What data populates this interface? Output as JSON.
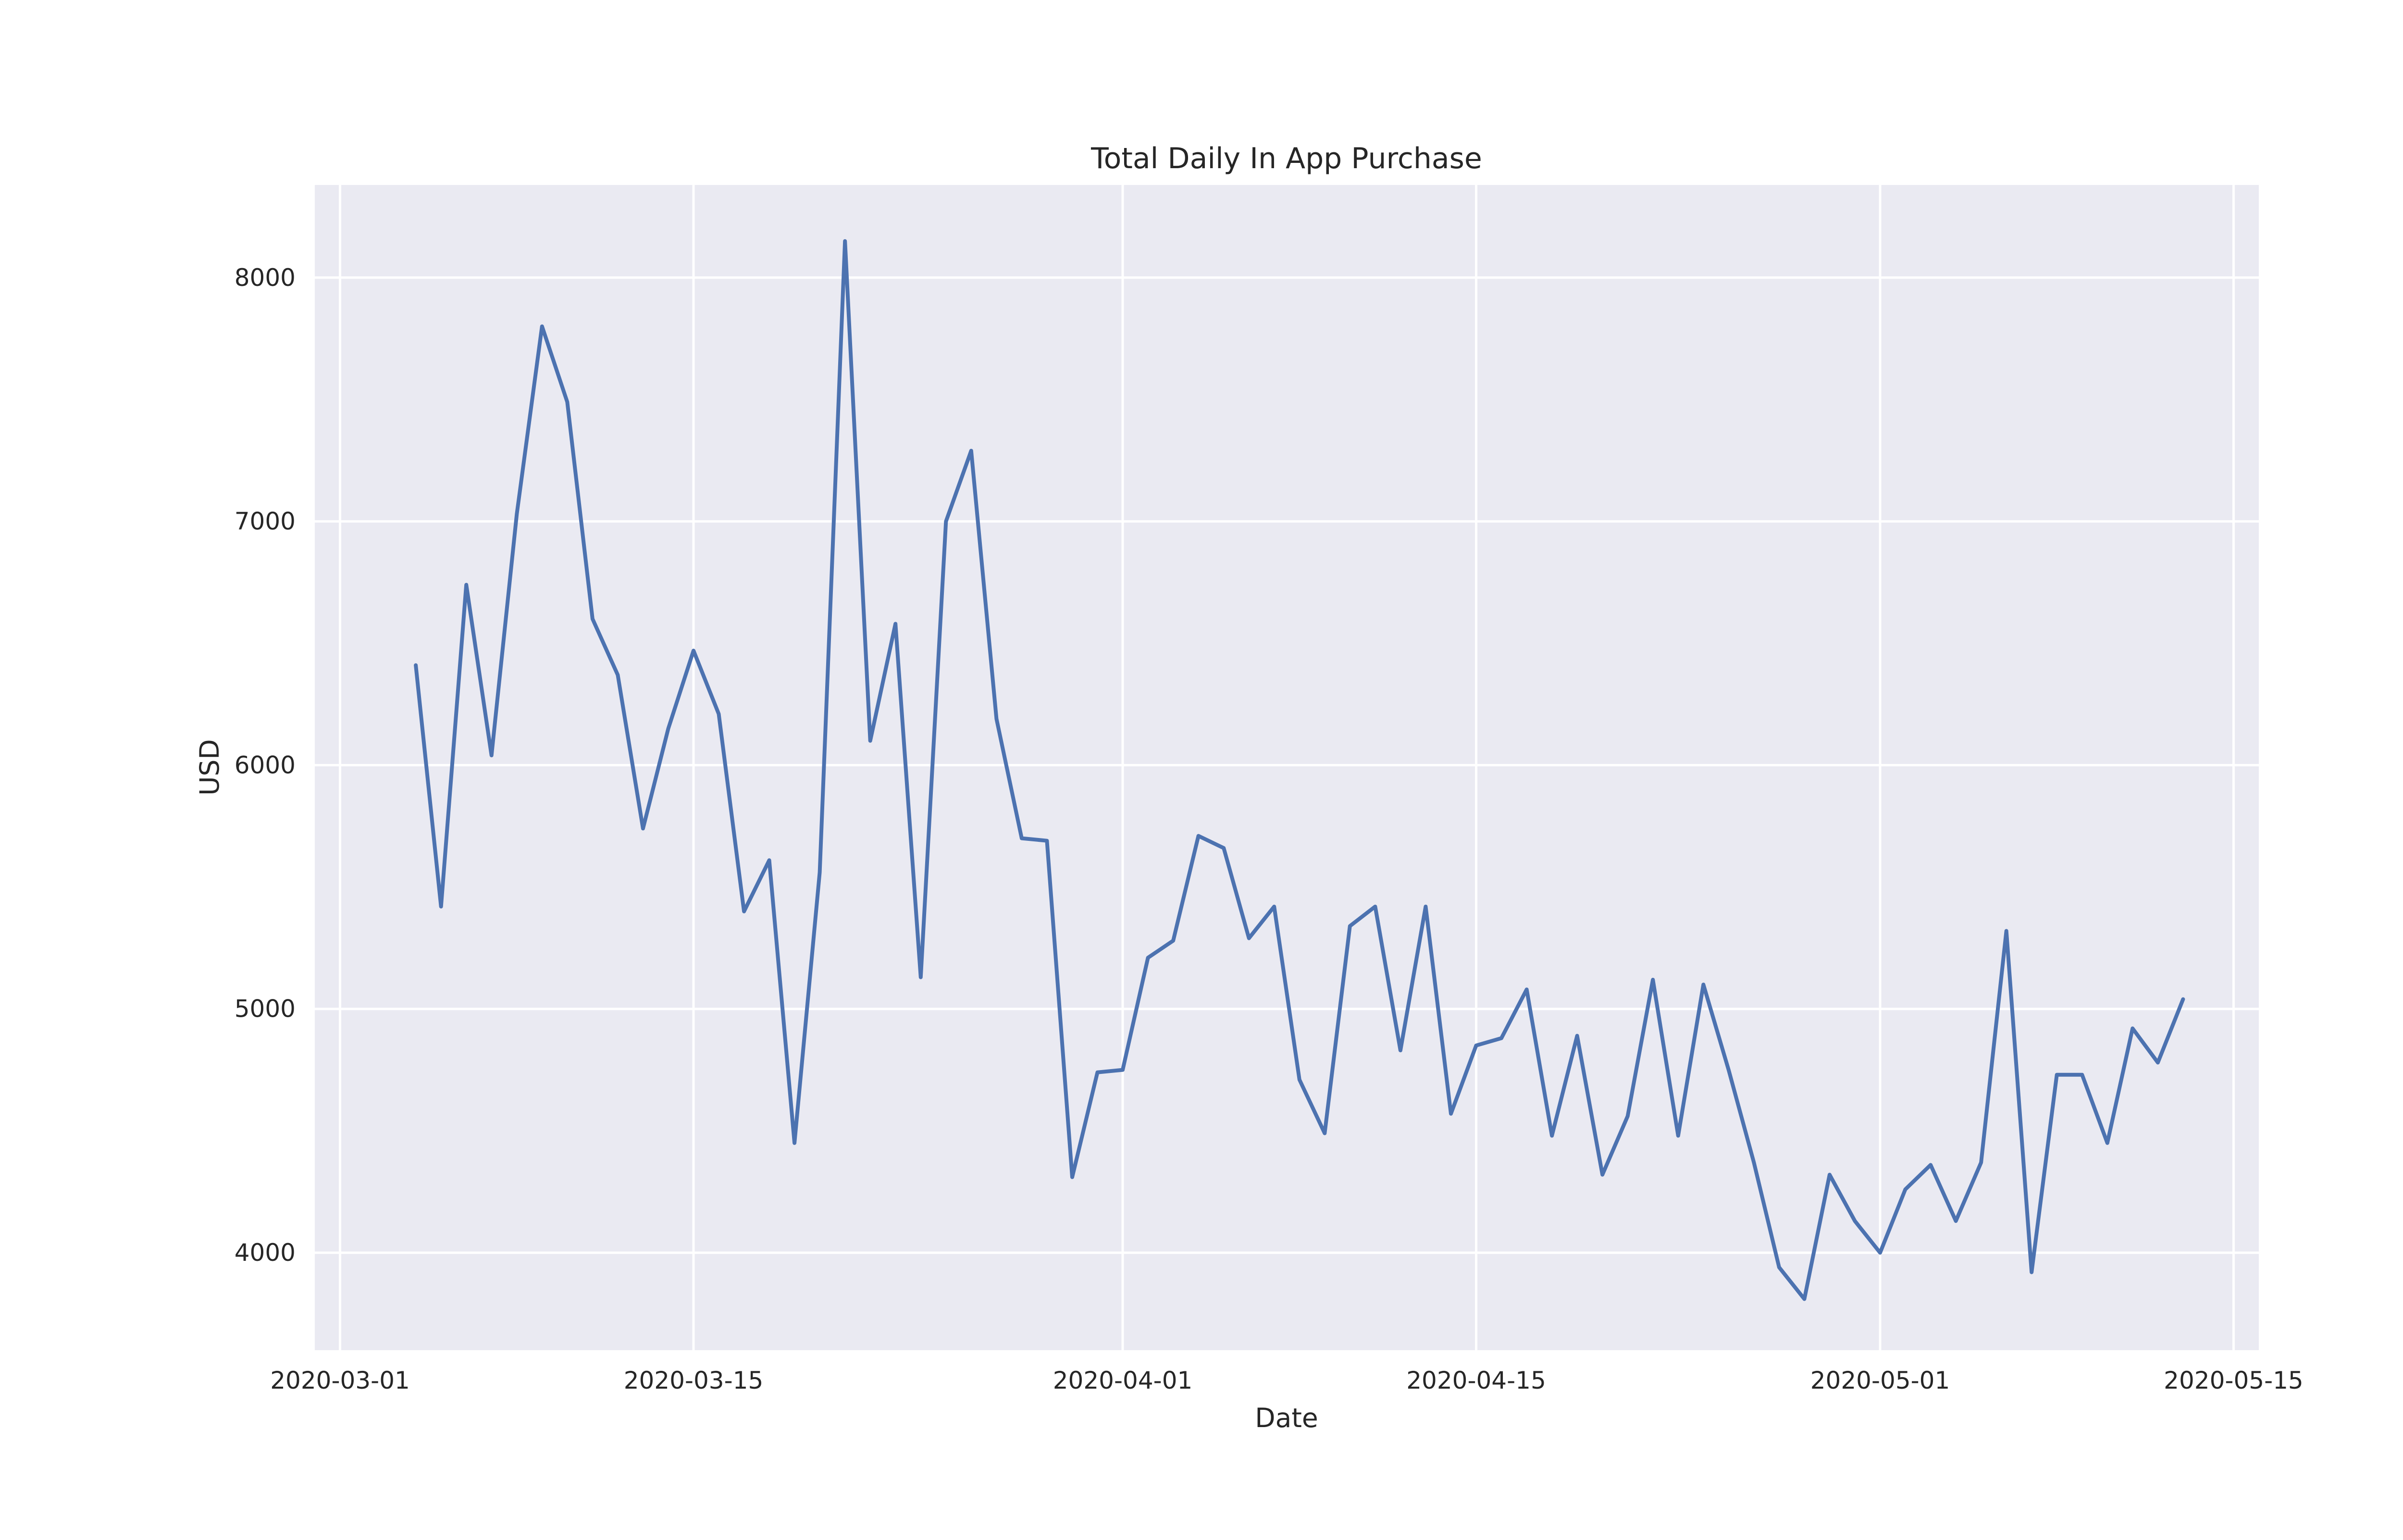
{
  "chart_data": {
    "type": "line",
    "title": "Total Daily In App Purchase",
    "xlabel": "Date",
    "ylabel": "USD",
    "x_start": "2020-03-04",
    "xlim": [
      "2020-02-29",
      "2020-05-16"
    ],
    "ylim": [
      3600,
      8380
    ],
    "grid": true,
    "background_color": "#eaeaf2",
    "grid_color": "#ffffff",
    "line_color": "#4c72b0",
    "xticks": [
      "2020-03-01",
      "2020-03-15",
      "2020-04-01",
      "2020-04-15",
      "2020-05-01",
      "2020-05-15"
    ],
    "yticks": [
      4000,
      5000,
      6000,
      7000,
      8000
    ],
    "series": [
      {
        "name": "USD",
        "values": [
          6410,
          5420,
          6740,
          6040,
          7030,
          7800,
          7490,
          6600,
          6370,
          5740,
          6150,
          6470,
          6210,
          5400,
          5610,
          4450,
          5560,
          8150,
          6100,
          6580,
          5130,
          7000,
          7290,
          6190,
          5700,
          5690,
          4310,
          4740,
          4750,
          5210,
          5280,
          5710,
          5660,
          5290,
          5420,
          4710,
          4490,
          5340,
          5420,
          4830,
          5420,
          4570,
          4850,
          4880,
          5080,
          4480,
          4890,
          4320,
          4560,
          5120,
          4480,
          5100,
          4750,
          4370,
          3940,
          3810,
          4320,
          4130,
          4000,
          4260,
          4360,
          4130,
          4370,
          5320,
          3920,
          4730,
          4730,
          4450,
          4920,
          4780,
          5040
        ]
      }
    ]
  }
}
